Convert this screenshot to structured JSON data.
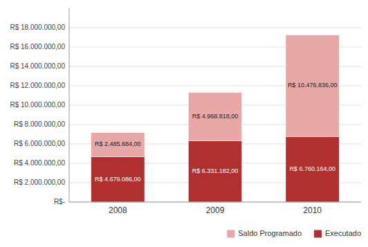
{
  "chart_data": {
    "type": "bar",
    "stacked": true,
    "categories": [
      "2008",
      "2009",
      "2010"
    ],
    "series": [
      {
        "name": "Executado",
        "color": "#b03030",
        "values": [
          4679086,
          6331182,
          6760164
        ],
        "value_labels": [
          "R$ 4.679.086,00",
          "R$ 6.331.182,00",
          "R$ 6.760.164,00"
        ]
      },
      {
        "name": "Saldo Programado",
        "color": "#e8a8a8",
        "values": [
          2485684,
          4968818,
          10476836
        ],
        "value_labels": [
          "R$ 2.485.684,00",
          "R$ 4.968.818,00",
          "R$ 10.476.836,00"
        ]
      }
    ],
    "ylim": [
      0,
      20000000
    ],
    "yticks": [
      {
        "value": 0,
        "label": "R$-"
      },
      {
        "value": 2000000,
        "label": "R$ 2.000.000,00"
      },
      {
        "value": 4000000,
        "label": "R$ 4.000.000,00"
      },
      {
        "value": 6000000,
        "label": "R$ 6.000.000,00"
      },
      {
        "value": 8000000,
        "label": "R$ 8.000.000,00"
      },
      {
        "value": 10000000,
        "label": "R$ 10.000.000,00"
      },
      {
        "value": 12000000,
        "label": "R$ 12.000.000,00"
      },
      {
        "value": 14000000,
        "label": "R$ 14.000.000,00"
      },
      {
        "value": 16000000,
        "label": "R$ 16.000.000,00"
      },
      {
        "value": 18000000,
        "label": "R$ 18.000.000,00"
      }
    ],
    "grid": true,
    "legend": "lower right",
    "data_labels": true
  }
}
